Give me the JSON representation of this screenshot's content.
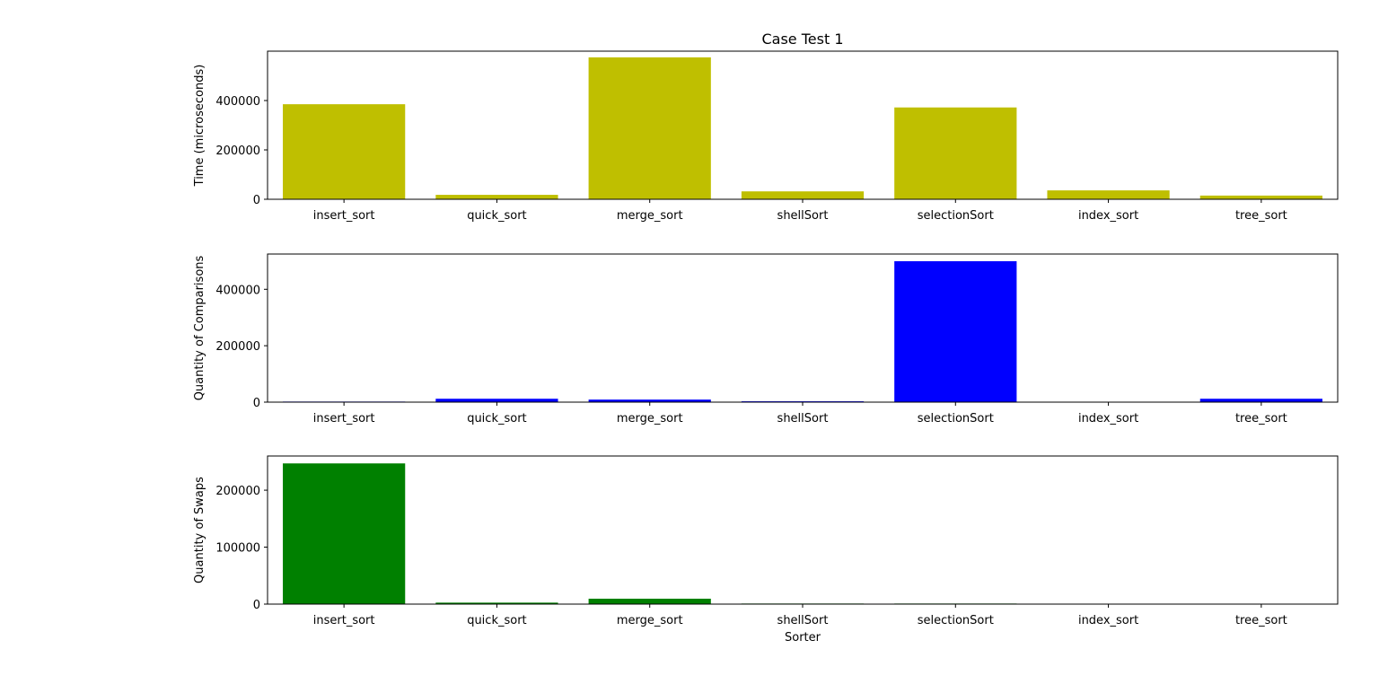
{
  "chart_data": [
    {
      "type": "bar",
      "title": "Case Test 1",
      "xlabel": "",
      "ylabel": "Time (microseconds)",
      "categories": [
        "insert_sort",
        "quick_sort",
        "merge_sort",
        "shellSort",
        "selectionSort",
        "index_sort",
        "tree_sort"
      ],
      "values": [
        385000,
        18000,
        575000,
        32000,
        372000,
        36000,
        15000
      ],
      "color": "#bfbf00",
      "ylim": [
        0,
        600000
      ],
      "yticks": [
        0,
        200000,
        400000
      ],
      "ytick_labels": [
        "0",
        "200000",
        "400000"
      ],
      "grid": false
    },
    {
      "type": "bar",
      "title": "",
      "xlabel": "",
      "ylabel": "Quantity of Comparisons",
      "categories": [
        "insert_sort",
        "quick_sort",
        "merge_sort",
        "shellSort",
        "selectionSort",
        "index_sort",
        "tree_sort"
      ],
      "values": [
        2000,
        12000,
        9000,
        3000,
        499500,
        0,
        12000
      ],
      "color": "#0000ff",
      "ylim": [
        0,
        525000
      ],
      "yticks": [
        0,
        200000,
        400000
      ],
      "ytick_labels": [
        "0",
        "200000",
        "400000"
      ],
      "grid": false
    },
    {
      "type": "bar",
      "title": "",
      "xlabel": "Sorter",
      "ylabel": "Quantity of Swaps",
      "categories": [
        "insert_sort",
        "quick_sort",
        "merge_sort",
        "shellSort",
        "selectionSort",
        "index_sort",
        "tree_sort"
      ],
      "values": [
        247000,
        2600,
        9500,
        1000,
        1000,
        0,
        0
      ],
      "color": "#008000",
      "ylim": [
        0,
        260000
      ],
      "yticks": [
        0,
        100000,
        200000
      ],
      "ytick_labels": [
        "0",
        "100000",
        "200000"
      ],
      "grid": false
    }
  ]
}
